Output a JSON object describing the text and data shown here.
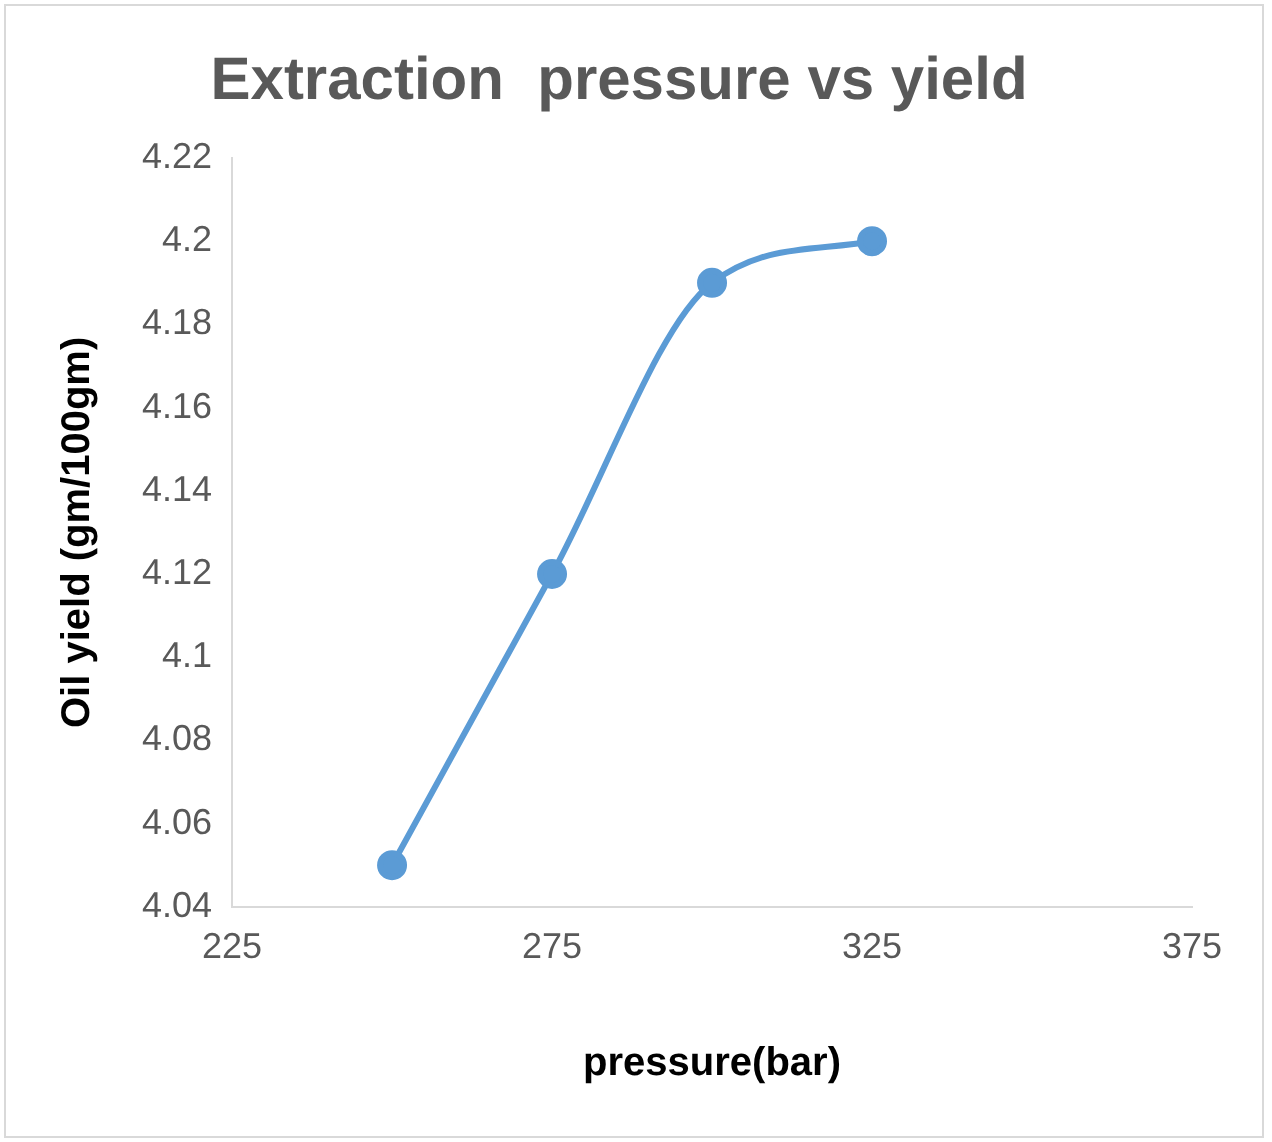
{
  "chart_data": {
    "type": "line",
    "title": "Extraction  pressure vs yield",
    "xlabel": "pressure(bar)",
    "ylabel": "Oil yield (gm/100gm)",
    "x": [
      250,
      275,
      300,
      325
    ],
    "series": [
      {
        "color": "#5b9bd5",
        "values": [
          4.05,
          4.12,
          4.19,
          4.2
        ]
      }
    ],
    "xlim": [
      225,
      375
    ],
    "xticks": [
      225,
      275,
      325,
      375
    ],
    "ylim": [
      4.04,
      4.22
    ],
    "yticks": [
      4.04,
      4.06,
      4.08,
      4.1,
      4.12,
      4.14,
      4.16,
      4.18,
      4.2,
      4.22
    ],
    "grid": false,
    "legend": false,
    "marker": "circle",
    "line_style": "solid"
  }
}
